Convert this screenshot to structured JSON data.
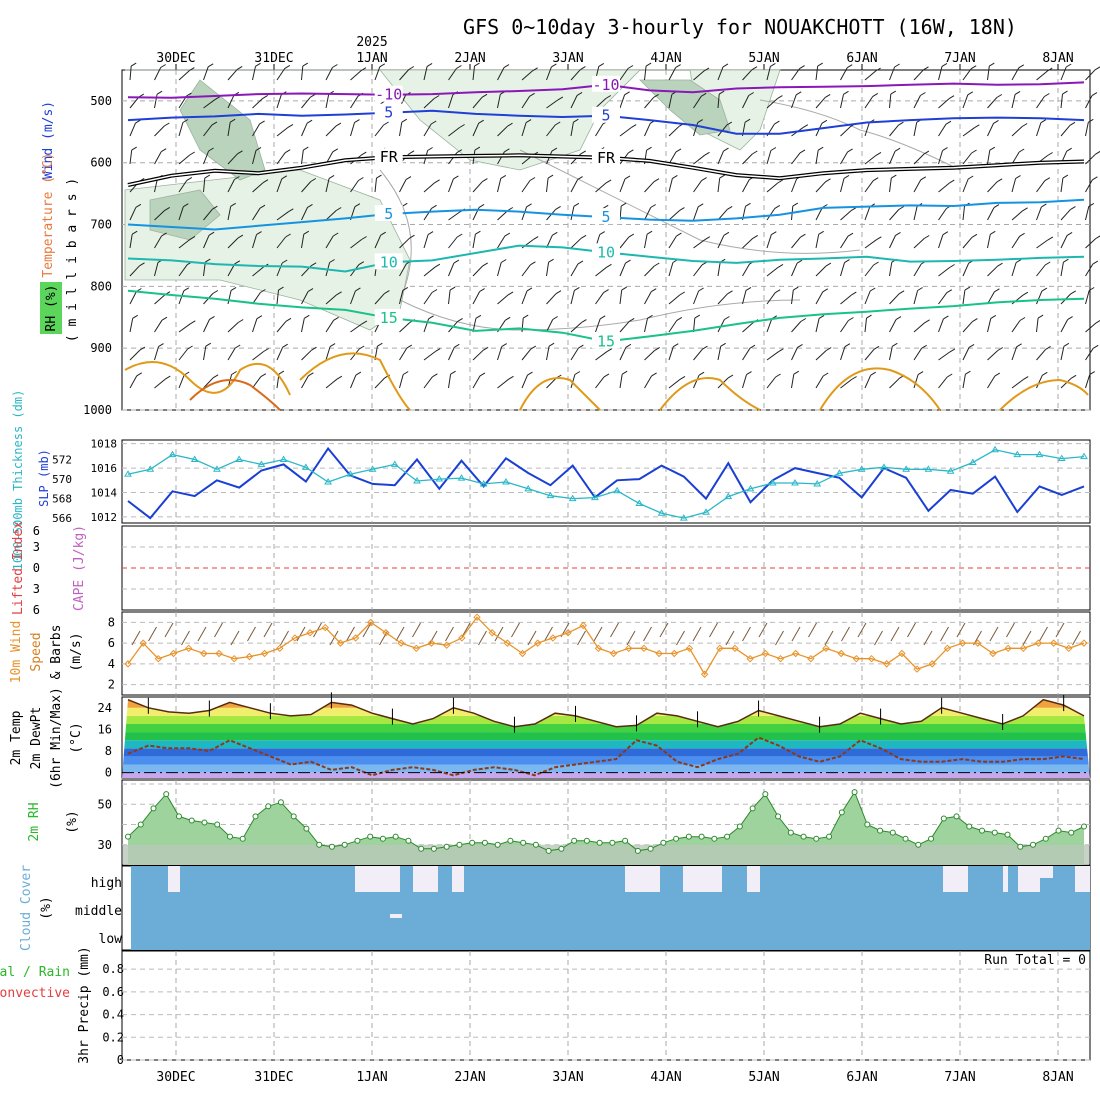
{
  "chart_data": {
    "type": "line",
    "title": "GFS 0~10day 3-hourly for NOUAKCHOTT (16W, 18N)",
    "year_label": "2025",
    "date_ticks": [
      "30DEC",
      "31DEC",
      "1JAN",
      "2JAN",
      "3JAN",
      "4JAN",
      "5JAN",
      "6JAN",
      "7JAN",
      "8JAN"
    ],
    "colors": {
      "purple": "#8a17b8",
      "blue": "#1f3fd6",
      "black": "#000000",
      "lightblue": "#1593e0",
      "teal": "#1cb8b0",
      "green": "#18c28a",
      "orange": "#e09a1a",
      "cape_line": "#e0413c",
      "speed": "#e8932a",
      "rh_fill": "#4ccf4c",
      "cloud": "#6badd6"
    },
    "upper_air": {
      "ylabel_wind": "Wind (m/s)",
      "ylabel_temp": "Temperature (°C)",
      "ylabel_rh": "RH (%)",
      "ylabel_unit": "( m i l l i b a r s )",
      "pressure_ticks": [
        500,
        600,
        700,
        800,
        900,
        1000
      ],
      "ylim": [
        1000,
        450
      ],
      "isotherms": [
        {
          "label": "-10",
          "color": "purple",
          "p": [
            494,
            495,
            492,
            489,
            488,
            489,
            490,
            489,
            486,
            484,
            481,
            474,
            483,
            486,
            480,
            478,
            477,
            476,
            474,
            472,
            474,
            473,
            470
          ]
        },
        {
          "label": "5",
          "color": "blue",
          "p": [
            531,
            527,
            525,
            521,
            524,
            522,
            519,
            516,
            521,
            524,
            526,
            524,
            531,
            539,
            553,
            553,
            544,
            535,
            531,
            528,
            527,
            528,
            531
          ]
        },
        {
          "label": "FR",
          "color": "black",
          "p": [
            636,
            621,
            613,
            617,
            608,
            596,
            591,
            590,
            589,
            588,
            590,
            592,
            597,
            608,
            620,
            625,
            617,
            612,
            610,
            608,
            604,
            600,
            598
          ]
        },
        {
          "label": "5",
          "color": "lightblue",
          "p": [
            700,
            704,
            708,
            702,
            696,
            690,
            683,
            679,
            676,
            679,
            684,
            688,
            692,
            694,
            690,
            684,
            673,
            671,
            669,
            670,
            665,
            664,
            660
          ]
        },
        {
          "label": "10",
          "color": "teal",
          "p": [
            755,
            758,
            764,
            767,
            768,
            776,
            761,
            758,
            746,
            734,
            737,
            745,
            752,
            759,
            762,
            757,
            755,
            752,
            760,
            759,
            757,
            754,
            752
          ]
        },
        {
          "label": "15",
          "color": "green",
          "p": [
            807,
            814,
            820,
            828,
            834,
            838,
            851,
            859,
            872,
            868,
            875,
            889,
            881,
            872,
            861,
            851,
            845,
            841,
            836,
            832,
            826,
            822,
            820
          ]
        }
      ]
    },
    "slp": {
      "ylabel": "SLP (mb)",
      "ylabel2": "1000-500mb Thickness (dm)",
      "ticks_slp": [
        1012,
        1014,
        1016,
        1018
      ],
      "ticks_thk": [
        566,
        568,
        570,
        572
      ],
      "slp_values": [
        1013.3,
        1011.9,
        1014.1,
        1013.7,
        1015.0,
        1014.4,
        1015.8,
        1016.3,
        1014.9,
        1017.6,
        1015.4,
        1014.7,
        1014.6,
        1016.7,
        1014.3,
        1016.6,
        1014.5,
        1016.8,
        1015.6,
        1014.6,
        1016.2,
        1013.6,
        1015.0,
        1015.1,
        1016.2,
        1015.3,
        1013.5,
        1016.4,
        1013.2,
        1015.0,
        1016.0,
        1015.6,
        1015.2,
        1013.6,
        1016.0,
        1015.2,
        1012.5,
        1014.2,
        1013.9,
        1015.3,
        1012.4,
        1014.5,
        1013.8,
        1014.5
      ],
      "thk_values": [
        570.5,
        571.0,
        572.5,
        572.0,
        571.0,
        572.0,
        571.5,
        572.0,
        571.2,
        569.7,
        570.5,
        571.0,
        571.5,
        569.8,
        570.0,
        570.1,
        569.5,
        569.7,
        569.0,
        568.3,
        568.0,
        568.1,
        568.8,
        567.5,
        566.5,
        566.0,
        566.6,
        568.2,
        569.0,
        569.6,
        569.6,
        569.5,
        570.6,
        571.0,
        571.2,
        571.0,
        571.0,
        570.8,
        571.7,
        573.0,
        572.5,
        572.5,
        572.1,
        572.3
      ]
    },
    "stability": {
      "ylabel1": "Lifted Index",
      "ylabel2": "CAPE (J/kg)",
      "ticks": [
        "6",
        "3",
        "0",
        "3",
        "6"
      ]
    },
    "wind10m": {
      "ylabel1": "10m Wind",
      "ylabel2": "Speed",
      "ylabel3": "& Barbs",
      "unit": "(m/s)",
      "ticks": [
        2,
        4,
        6,
        8
      ],
      "values": [
        4.0,
        6.0,
        4.5,
        5.0,
        5.5,
        5.0,
        5.0,
        4.5,
        4.7,
        5.0,
        5.5,
        6.5,
        7.0,
        7.5,
        6.0,
        6.5,
        8.0,
        7.0,
        6.0,
        5.5,
        6.0,
        5.8,
        6.5,
        8.5,
        7.0,
        6.0,
        5.0,
        6.0,
        6.5,
        7.0,
        7.7,
        5.5,
        5.0,
        5.5,
        5.5,
        5.0,
        5.0,
        5.5,
        3.0,
        5.5,
        5.5,
        4.5,
        5.0,
        4.5,
        5.0,
        4.5,
        5.5,
        5.0,
        4.5,
        4.5,
        4.0,
        5.0,
        3.5,
        4.0,
        5.5,
        6.0,
        6.0,
        5.0,
        5.5,
        5.5,
        6.0,
        6.0,
        5.5,
        6.0
      ]
    },
    "temp2m": {
      "ylabel1": "2m Temp",
      "ylabel2": "2m DewPt",
      "ylabel3": "(6hr Min/Max)",
      "unit": "(°C)",
      "ticks": [
        0,
        8,
        16,
        24
      ],
      "temp": [
        27,
        24,
        22.5,
        22,
        23,
        26,
        24,
        22,
        21,
        21.5,
        26,
        25,
        22,
        20,
        18,
        20,
        24,
        22,
        19,
        17,
        18,
        22,
        21,
        19,
        17,
        17.5,
        22,
        21,
        19,
        17,
        19,
        23,
        21,
        19,
        17,
        18,
        22,
        20,
        18,
        19,
        24,
        22,
        20,
        18,
        21,
        27,
        25,
        21
      ],
      "dew": [
        7,
        10,
        9,
        9,
        8,
        12,
        9,
        6,
        3,
        4,
        1,
        2,
        -1,
        1,
        2,
        1,
        -1,
        1,
        2,
        1,
        -1,
        2,
        3,
        4,
        5,
        12,
        10,
        4,
        2,
        5,
        7,
        13,
        10,
        6,
        4,
        6,
        12,
        9,
        5,
        4,
        4,
        5,
        4,
        4,
        5,
        5,
        6,
        5
      ],
      "band_colors": [
        "#c9a6f0",
        "#7cb8f0",
        "#4a8ef0",
        "#2e6bd8",
        "#1fb8c0",
        "#22c24a",
        "#41d141",
        "#a6e841",
        "#f0ee6b",
        "#f0a33c"
      ]
    },
    "rh2m": {
      "ylabel": "2m RH",
      "unit": "(%)",
      "ticks": [
        30,
        50
      ],
      "values": [
        34,
        40,
        48,
        55,
        44,
        42,
        41,
        40,
        34,
        33,
        44,
        49,
        51,
        44,
        38,
        30,
        29,
        30,
        32,
        34,
        33,
        34,
        32,
        28,
        28,
        29,
        30,
        31,
        31,
        30,
        32,
        31,
        30,
        27,
        28,
        32,
        32,
        31,
        31,
        32,
        27,
        28,
        31,
        33,
        34,
        34,
        33,
        34,
        39,
        48,
        55,
        44,
        36,
        34,
        33,
        34,
        46,
        56,
        40,
        37,
        36,
        33,
        30,
        33,
        43,
        44,
        39,
        37,
        36,
        35,
        29,
        30,
        33,
        37,
        36,
        39
      ],
      "fill_bottom": "#b8c8b8"
    },
    "cloud": {
      "ylabel1": "Cloud Cover",
      "unit": "(%)",
      "levels": [
        "high",
        "middle",
        "low"
      ]
    },
    "precip": {
      "ylabel1": "Total / Rain",
      "ylabel2": "Convective",
      "ylabel3": "3hr Precip (mm)",
      "ticks": [
        "0",
        "0.2",
        "0.4",
        "0.6",
        "0.8"
      ],
      "run_total": "Run Total = 0"
    }
  }
}
